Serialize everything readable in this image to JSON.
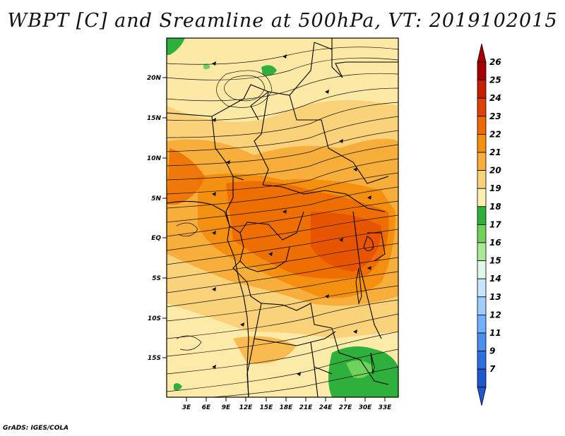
{
  "title": "WBPT [C] and Sreamline at 500hPa, VT: 2019102015",
  "footer": "GrADS: IGES/COLA",
  "map": {
    "lat_ticks": [
      "20N",
      "15N",
      "10N",
      "5N",
      "EQ",
      "5S",
      "10S",
      "15S"
    ],
    "lon_ticks": [
      "3E",
      "6E",
      "9E",
      "12E",
      "15E",
      "18E",
      "21E",
      "24E",
      "27E",
      "30E",
      "33E"
    ]
  },
  "colorbar": {
    "labels": [
      "26",
      "25",
      "24",
      "23",
      "22",
      "21",
      "20",
      "19",
      "18",
      "17",
      "16",
      "15",
      "14",
      "13",
      "12",
      "11",
      "9",
      "7"
    ],
    "colors": [
      "#a50000",
      "#c81e00",
      "#e14100",
      "#ee6a00",
      "#f58f0f",
      "#f8ae3a",
      "#fad27a",
      "#fcefb0",
      "#2fb03c",
      "#6fd25a",
      "#a8e896",
      "#e0f8e8",
      "#c7e5ff",
      "#9fcdff",
      "#72b0ff",
      "#4a8ff0",
      "#2d6ee0",
      "#1f57cf"
    ],
    "top_arrow_color": "#a50000",
    "bottom_arrow_color": "#1f57cf"
  }
}
